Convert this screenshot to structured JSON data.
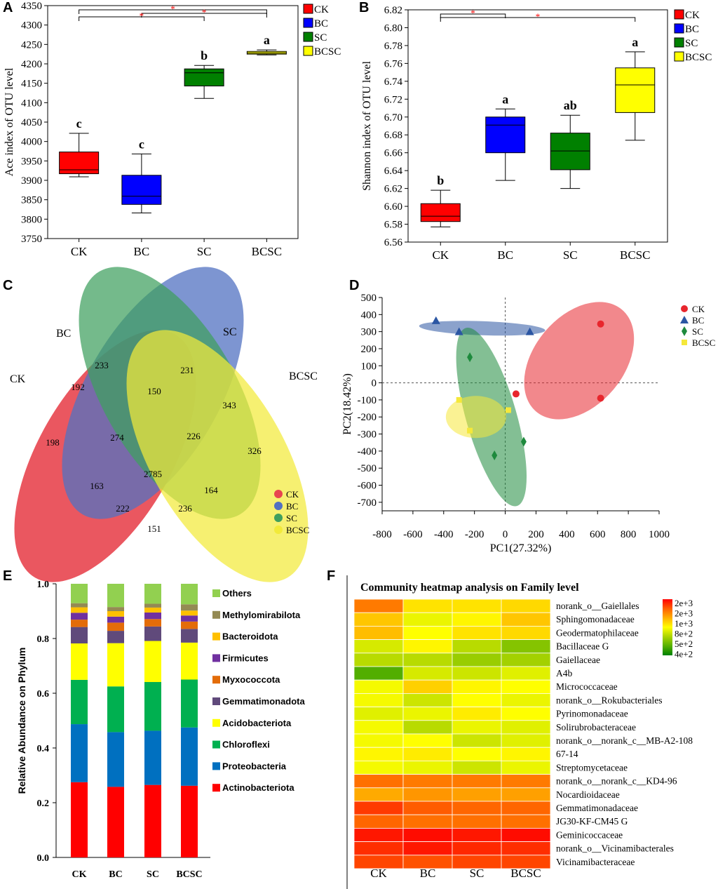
{
  "panel_labels": [
    "A",
    "B",
    "C",
    "D",
    "E",
    "F"
  ],
  "chart_data": [
    {
      "id": "A",
      "type": "box",
      "title": "",
      "ylabel": "Ace index of OTU level",
      "ylim": [
        3750,
        4350
      ],
      "yticks": [
        3750,
        3800,
        3850,
        3900,
        3950,
        4000,
        4050,
        4100,
        4150,
        4200,
        4250,
        4300,
        4350
      ],
      "categories": [
        "CK",
        "BC",
        "SC",
        "BCSC"
      ],
      "colors": [
        "#ff0000",
        "#0000ff",
        "#008000",
        "#ffff00"
      ],
      "boxes": [
        {
          "group": "CK",
          "min": 3909,
          "q1": 3917,
          "median": 3927,
          "q3": 3973,
          "max": 4021,
          "letter": "c"
        },
        {
          "group": "BC",
          "min": 3816,
          "q1": 3838,
          "median": 3859,
          "q3": 3913,
          "max": 3968,
          "letter": "c"
        },
        {
          "group": "SC",
          "min": 4111,
          "q1": 4143,
          "median": 4177,
          "q3": 4187,
          "max": 4196,
          "letter": "b"
        },
        {
          "group": "BCSC",
          "min": 4223,
          "q1": 4225,
          "median": 4228,
          "q3": 4232,
          "max": 4236,
          "letter": "a"
        }
      ],
      "significance": [
        {
          "from": "CK",
          "to": "BCSC",
          "mark": "*"
        },
        {
          "from": "BC",
          "to": "BCSC",
          "mark": "*"
        },
        {
          "from": "CK",
          "to": "SC",
          "mark": "*"
        }
      ],
      "legend": [
        "CK",
        "BC",
        "SC",
        "BCSC"
      ]
    },
    {
      "id": "B",
      "type": "box",
      "ylabel": "Shannon index of OTU level",
      "ylim": [
        6.56,
        6.82
      ],
      "yticks": [
        "6.56",
        "6.58",
        "6.60",
        "6.62",
        "6.64",
        "6.66",
        "6.68",
        "6.70",
        "6.72",
        "6.74",
        "6.76",
        "6.78",
        "6.80",
        "6.82"
      ],
      "categories": [
        "CK",
        "BC",
        "SC",
        "BCSC"
      ],
      "colors": [
        "#ff0000",
        "#0000ff",
        "#008000",
        "#ffff00"
      ],
      "boxes": [
        {
          "group": "CK",
          "min": 6.577,
          "q1": 6.583,
          "median": 6.589,
          "q3": 6.603,
          "max": 6.618,
          "letter": "b"
        },
        {
          "group": "BC",
          "min": 6.629,
          "q1": 6.66,
          "median": 6.691,
          "q3": 6.7,
          "max": 6.709,
          "letter": "a"
        },
        {
          "group": "SC",
          "min": 6.62,
          "q1": 6.641,
          "median": 6.662,
          "q3": 6.682,
          "max": 6.702,
          "letter": "ab"
        },
        {
          "group": "BCSC",
          "min": 6.674,
          "q1": 6.705,
          "median": 6.736,
          "q3": 6.755,
          "max": 6.773,
          "letter": "a"
        }
      ],
      "significance": [
        {
          "from": "CK",
          "to": "BC",
          "mark": "*"
        },
        {
          "from": "CK",
          "to": "BCSC",
          "mark": "*"
        }
      ],
      "legend": [
        "CK",
        "BC",
        "SC",
        "BCSC"
      ]
    },
    {
      "id": "C",
      "type": "venn",
      "sets": [
        {
          "name": "CK",
          "color": "#e8454f"
        },
        {
          "name": "BC",
          "color": "#5271c2"
        },
        {
          "name": "SC",
          "color": "#3f9f5e"
        },
        {
          "name": "BCSC",
          "color": "#f2ea3a"
        }
      ],
      "regions": {
        "CK": "198",
        "BC": "233",
        "SC": "231",
        "BCSC": "326",
        "CK_BC": "192",
        "BC_SC": "150",
        "SC_BCSC": "343",
        "CK_BCSC": "151",
        "CK_BC_SC": "274",
        "BC_SC_BCSC": "226",
        "CK_BC_BCSC": "164",
        "CK_SC_BCSC": "236",
        "CK_SC": "163",
        "BC_BCSC": "222",
        "all": "2785"
      },
      "legend": [
        "CK",
        "BC",
        "SC",
        "BCSC"
      ]
    },
    {
      "id": "D",
      "type": "scatter",
      "xlabel": "PC1(27.32%)",
      "ylabel": "PC2(18.42%)",
      "xlim": [
        -800,
        1000
      ],
      "ylim": [
        -750,
        500
      ],
      "xticks": [
        -800,
        -600,
        -400,
        -200,
        0,
        200,
        400,
        600,
        800,
        1000
      ],
      "yticks": [
        500,
        400,
        300,
        200,
        100,
        0,
        -100,
        -200,
        -300,
        -400,
        -500,
        -600,
        -700
      ],
      "series": [
        {
          "name": "CK",
          "color": "#e8262d",
          "marker": "circle",
          "points": [
            [
              620,
              345
            ],
            [
              620,
              -90
            ],
            [
              70,
              -65
            ]
          ]
        },
        {
          "name": "BC",
          "color": "#2b56a3",
          "marker": "triangle",
          "points": [
            [
              -450,
              365
            ],
            [
              -300,
              300
            ],
            [
              160,
              300
            ]
          ]
        },
        {
          "name": "SC",
          "color": "#1e8a3d",
          "marker": "diamond",
          "points": [
            [
              -230,
              150
            ],
            [
              120,
              -345
            ],
            [
              -70,
              -425
            ]
          ]
        },
        {
          "name": "BCSC",
          "color": "#f5e83a",
          "marker": "square",
          "points": [
            [
              -300,
              -100
            ],
            [
              -230,
              -280
            ],
            [
              20,
              -160
            ]
          ]
        }
      ],
      "legend": [
        "CK",
        "BC",
        "SC",
        "BCSC"
      ]
    },
    {
      "id": "E",
      "type": "stacked-bar",
      "ylabel": "Relative Abundance on Phylum",
      "ylim": [
        0,
        1.0
      ],
      "yticks": [
        "0.0",
        "0.2",
        "0.4",
        "0.6",
        "0.8",
        "1.0"
      ],
      "categories": [
        "CK",
        "BC",
        "SC",
        "BCSC"
      ],
      "series": [
        {
          "name": "Actinobacteriota",
          "color": "#ff0000",
          "values": [
            0.275,
            0.258,
            0.265,
            0.262
          ]
        },
        {
          "name": "Proteobacteria",
          "color": "#0070c0",
          "values": [
            0.212,
            0.2,
            0.198,
            0.213
          ]
        },
        {
          "name": "Chloroflexi",
          "color": "#00b050",
          "values": [
            0.162,
            0.167,
            0.178,
            0.175
          ]
        },
        {
          "name": "Acidobacteriota",
          "color": "#ffff00",
          "values": [
            0.133,
            0.158,
            0.15,
            0.135
          ]
        },
        {
          "name": "Gemmatimonadota",
          "color": "#604a7b",
          "values": [
            0.06,
            0.045,
            0.053,
            0.05
          ]
        },
        {
          "name": "Myxococcota",
          "color": "#e36c09",
          "values": [
            0.027,
            0.03,
            0.027,
            0.027
          ]
        },
        {
          "name": "Firmicutes",
          "color": "#7030a0",
          "values": [
            0.025,
            0.022,
            0.024,
            0.022
          ]
        },
        {
          "name": "Bacteroidota",
          "color": "#ffc000",
          "values": [
            0.02,
            0.02,
            0.018,
            0.018
          ]
        },
        {
          "name": "Methylomirabilota",
          "color": "#948a54",
          "values": [
            0.015,
            0.015,
            0.014,
            0.023
          ]
        },
        {
          "name": "Others",
          "color": "#92d050",
          "values": [
            0.071,
            0.085,
            0.073,
            0.075
          ]
        }
      ]
    },
    {
      "id": "F",
      "type": "heatmap",
      "title": "Community heatmap analysis on Family level",
      "columns": [
        "CK",
        "BC",
        "SC",
        "BCSC"
      ],
      "rows": [
        "norank_o__Gaiellales",
        "Sphingomonadaceae",
        "Geodermatophilaceae",
        "Bacillaceae G",
        "Gaiellaceae",
        "A4b",
        "Micrococcaceae",
        "norank_o__Rokubacteriales",
        "Pyrinomonadaceae",
        "Solirubrobacteraceae",
        "norank_o__norank_c__MB-A2-108",
        "67-14",
        "Streptomycetaceae",
        "norank_o__norank_c__KD4-96",
        "Nocardioidaceae",
        "Gemmatimonadaceae",
        "JG30-KF-CM45 G",
        "Geminicoccaceae",
        "norank_o__Vicinamibacterales",
        "Vicinamibacteraceae"
      ],
      "values": [
        [
          0.78,
          0.56,
          0.56,
          0.58
        ],
        [
          0.62,
          0.46,
          0.52,
          0.62
        ],
        [
          0.64,
          0.5,
          0.56,
          0.58
        ],
        [
          0.42,
          0.52,
          0.36,
          0.26
        ],
        [
          0.36,
          0.36,
          0.3,
          0.32
        ],
        [
          0.16,
          0.42,
          0.4,
          0.44
        ],
        [
          0.48,
          0.6,
          0.52,
          0.5
        ],
        [
          0.48,
          0.4,
          0.5,
          0.46
        ],
        [
          0.44,
          0.46,
          0.54,
          0.5
        ],
        [
          0.48,
          0.36,
          0.46,
          0.44
        ],
        [
          0.48,
          0.5,
          0.4,
          0.44
        ],
        [
          0.52,
          0.54,
          0.5,
          0.52
        ],
        [
          0.48,
          0.46,
          0.4,
          0.46
        ],
        [
          0.8,
          0.78,
          0.78,
          0.78
        ],
        [
          0.68,
          0.72,
          0.7,
          0.7
        ],
        [
          0.9,
          0.84,
          0.82,
          0.82
        ],
        [
          0.82,
          0.8,
          0.8,
          0.8
        ],
        [
          0.96,
          0.98,
          0.96,
          0.98
        ],
        [
          0.92,
          0.96,
          0.93,
          0.92
        ],
        [
          0.88,
          0.86,
          0.88,
          0.88
        ]
      ],
      "scale_labels": [
        "2e+3",
        "2e+3",
        "1e+3",
        "8e+2",
        "5e+2",
        "4e+2"
      ]
    }
  ]
}
